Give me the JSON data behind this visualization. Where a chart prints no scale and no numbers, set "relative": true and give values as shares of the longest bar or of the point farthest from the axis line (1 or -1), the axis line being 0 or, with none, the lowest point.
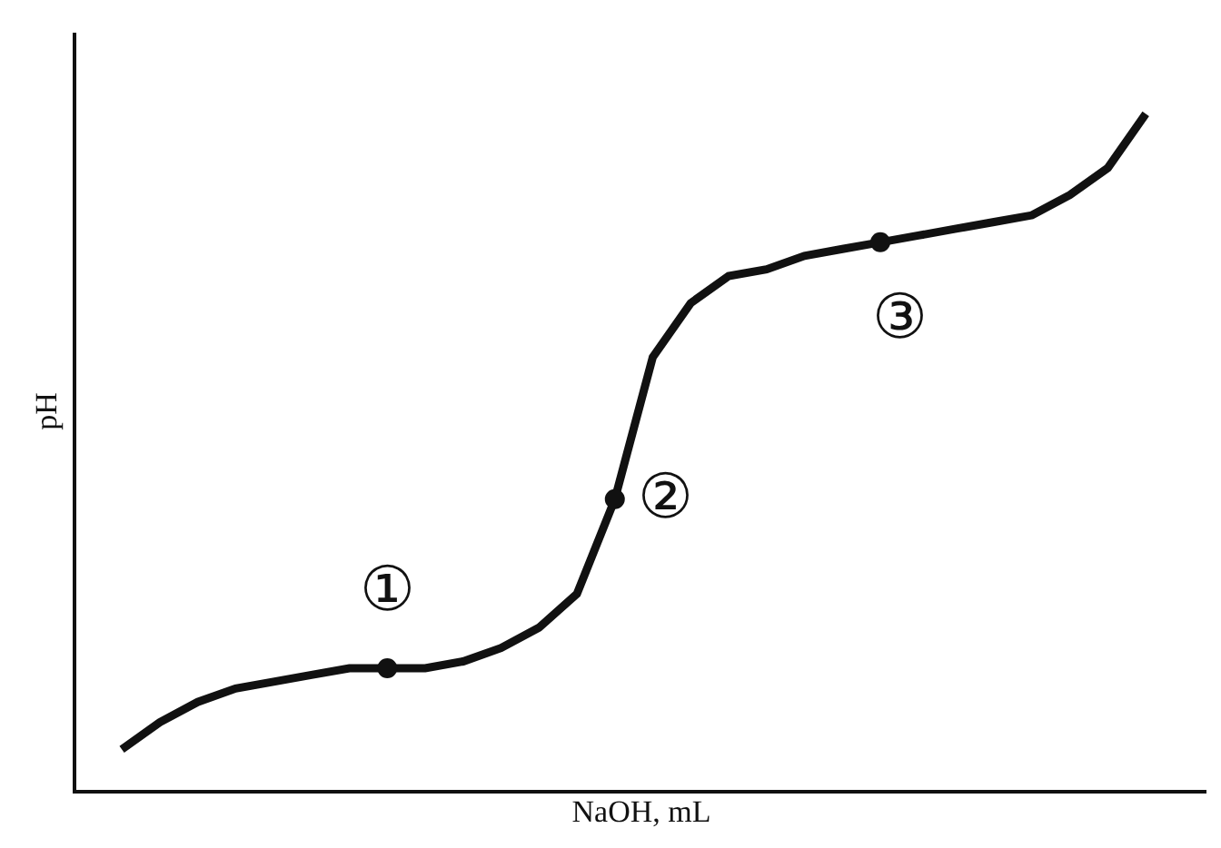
{
  "chart_data": {
    "type": "line",
    "relative": true,
    "xlabel": "NaOH, mL",
    "ylabel": "pH",
    "marker": "none",
    "line_style": "solid",
    "categories": [
      null,
      null,
      null,
      null,
      null,
      null,
      null,
      null,
      null,
      null,
      null,
      null,
      null,
      null,
      null,
      null,
      null,
      null,
      null,
      null,
      null,
      null,
      null,
      null,
      null,
      null,
      null,
      null
    ],
    "series": [
      {
        "color": "#111111",
        "values": [
          0.06,
          0.1,
          0.13,
          0.15,
          0.16,
          0.17,
          0.18,
          0.18,
          0.18,
          0.19,
          0.21,
          0.24,
          0.29,
          0.43,
          0.64,
          0.72,
          0.76,
          0.77,
          0.79,
          0.8,
          0.81,
          0.82,
          0.83,
          0.84,
          0.85,
          0.88,
          0.92,
          1
        ]
      }
    ],
    "annotations": [
      {
        "text": "①",
        "y": 0.18
      },
      "②",
      {
        "text": "③",
        "y": 0.81
      }
    ]
  }
}
